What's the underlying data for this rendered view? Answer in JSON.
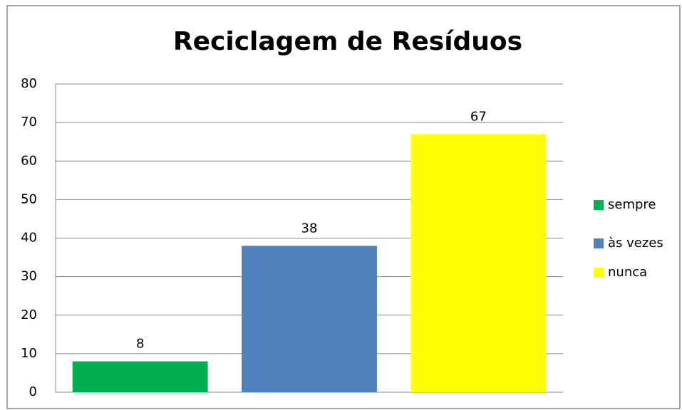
{
  "chart_data": {
    "type": "bar",
    "title": "Reciclagem de Resíduos",
    "categories": [
      null
    ],
    "series": [
      {
        "name": "sempre",
        "color": "#00b050",
        "values": [
          8
        ]
      },
      {
        "name": "às vezes",
        "color": "#4f81bd",
        "values": [
          38
        ]
      },
      {
        "name": "nunca",
        "color": "#ffff00",
        "values": [
          67
        ]
      }
    ],
    "ylim": [
      0,
      80
    ],
    "yticks": [
      0,
      10,
      20,
      30,
      40,
      50,
      60,
      70,
      80
    ],
    "grid": true,
    "legend": "right"
  }
}
